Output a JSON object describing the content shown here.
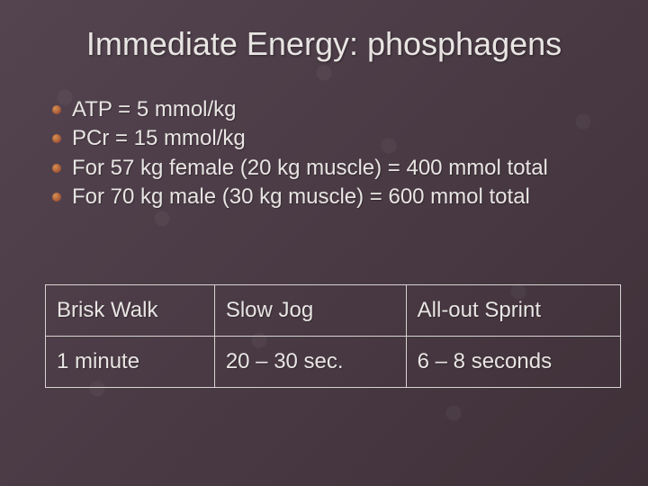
{
  "title": "Immediate Energy: phosphagens",
  "bullets": [
    "ATP = 5 mmol/kg",
    "PCr = 15 mmol/kg",
    "For 57 kg female (20 kg muscle) = 400 mmol  total",
    "For 70 kg male (30 kg muscle) = 600 mmol total"
  ],
  "table": {
    "rows": [
      [
        "Brisk Walk",
        "Slow Jog",
        "All-out Sprint"
      ],
      [
        "1 minute",
        "20 – 30 sec.",
        "6 – 8 seconds"
      ]
    ],
    "border_color": "#d8d4d0",
    "cell_padding": 14,
    "font_size": 24,
    "text_color": "#e8e5e3"
  },
  "style": {
    "background_base": "#4a3a44",
    "text_color": "#e8e5e3",
    "title_fontsize": 36,
    "body_fontsize": 24,
    "bullet_gradient_light": "#d89050",
    "bullet_gradient_dark": "#8a3a2a"
  }
}
